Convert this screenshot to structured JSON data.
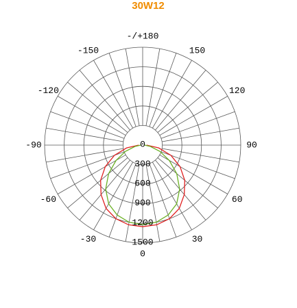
{
  "chart_data": {
    "type": "polar",
    "title": "30W12",
    "x": [
      -90,
      -80,
      -70,
      -60,
      -50,
      -40,
      -30,
      -20,
      -10,
      0,
      10,
      20,
      30,
      40,
      50,
      60,
      70,
      80,
      90
    ],
    "series": [
      {
        "color": "#e02020",
        "values": [
          60,
          250,
          460,
          660,
          840,
          990,
          1120,
          1200,
          1240,
          1250,
          1240,
          1200,
          1120,
          990,
          840,
          660,
          460,
          250,
          60
        ]
      },
      {
        "color": "#6ab023",
        "values": [
          30,
          120,
          280,
          470,
          680,
          880,
          1040,
          1140,
          1200,
          1220,
          1200,
          1140,
          1040,
          880,
          680,
          470,
          280,
          120,
          30
        ]
      }
    ],
    "rlim": [
      0,
      1500
    ],
    "rticks": [
      0,
      300,
      600,
      900,
      1200,
      1500
    ],
    "angle_ticks": [
      {
        "value": 180,
        "label": "-/+180"
      },
      150,
      120,
      90,
      60,
      30,
      0,
      -30,
      -60,
      -90,
      -120,
      -150
    ]
  }
}
